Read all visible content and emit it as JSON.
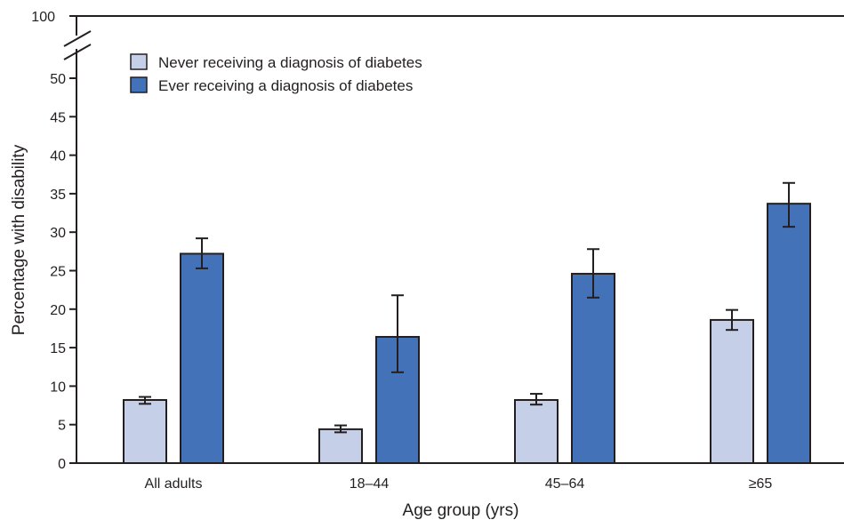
{
  "chart_data": {
    "type": "bar",
    "title": "",
    "xlabel": "Age group (yrs)",
    "ylabel": "Percentage with disability",
    "categories": [
      "All adults",
      "18–44",
      "45–64",
      "≥65"
    ],
    "ylim": [
      0,
      50
    ],
    "yticks": [
      "0",
      "5",
      "10",
      "15",
      "20",
      "25",
      "30",
      "35",
      "40",
      "45",
      "50"
    ],
    "y_break_top_label": "100",
    "axis_break": true,
    "grid": false,
    "legend_position": "top-left",
    "series": [
      {
        "name": "Never receiving a diagnosis of diabetes",
        "color": "#c5cfe7",
        "values": [
          8.2,
          4.4,
          8.2,
          18.6
        ],
        "ci_low": [
          7.7,
          4.0,
          7.6,
          17.3
        ],
        "ci_high": [
          8.6,
          4.9,
          9.0,
          19.9
        ]
      },
      {
        "name": "Ever receiving a diagnosis of diabetes",
        "color": "#4472b8",
        "values": [
          27.2,
          16.4,
          24.6,
          33.7
        ],
        "ci_low": [
          25.3,
          11.8,
          21.5,
          30.7
        ],
        "ci_high": [
          29.2,
          21.8,
          27.8,
          36.4
        ]
      }
    ]
  }
}
